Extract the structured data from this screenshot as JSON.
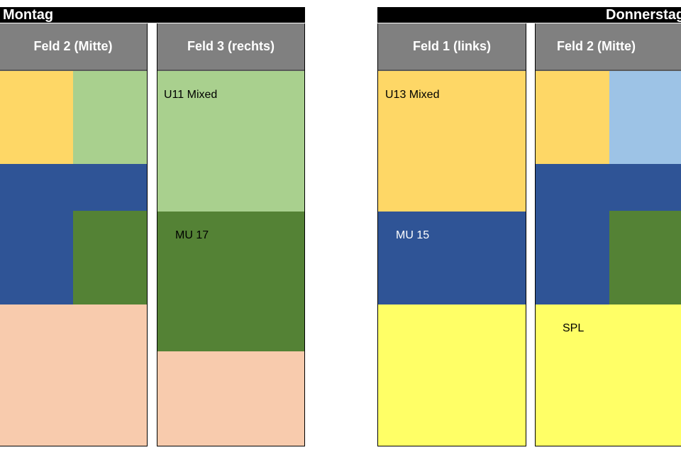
{
  "colors": {
    "orange": "#FED766",
    "light_green": "#A9D08E",
    "blue": "#2F5496",
    "dark_green": "#548235",
    "salmon": "#F8CBAD",
    "yellow": "#FFFF66",
    "light_blue": "#9DC3E6",
    "header_gray": "#808080"
  },
  "left_day": {
    "title": "Montag",
    "columns": [
      {
        "header": "Feld 2 (Mitte)"
      },
      {
        "header": "Feld 3 (rechts)",
        "blocks": [
          "U11 Mixed",
          "MU 17"
        ]
      }
    ]
  },
  "right_day": {
    "title": "Donnerstag",
    "columns": [
      {
        "header": "Feld 1 (links)",
        "blocks": [
          "U13 Mixed",
          "MU 15"
        ]
      },
      {
        "header": "Feld 2 (Mitte)",
        "blocks": [
          "SPL"
        ]
      }
    ]
  }
}
